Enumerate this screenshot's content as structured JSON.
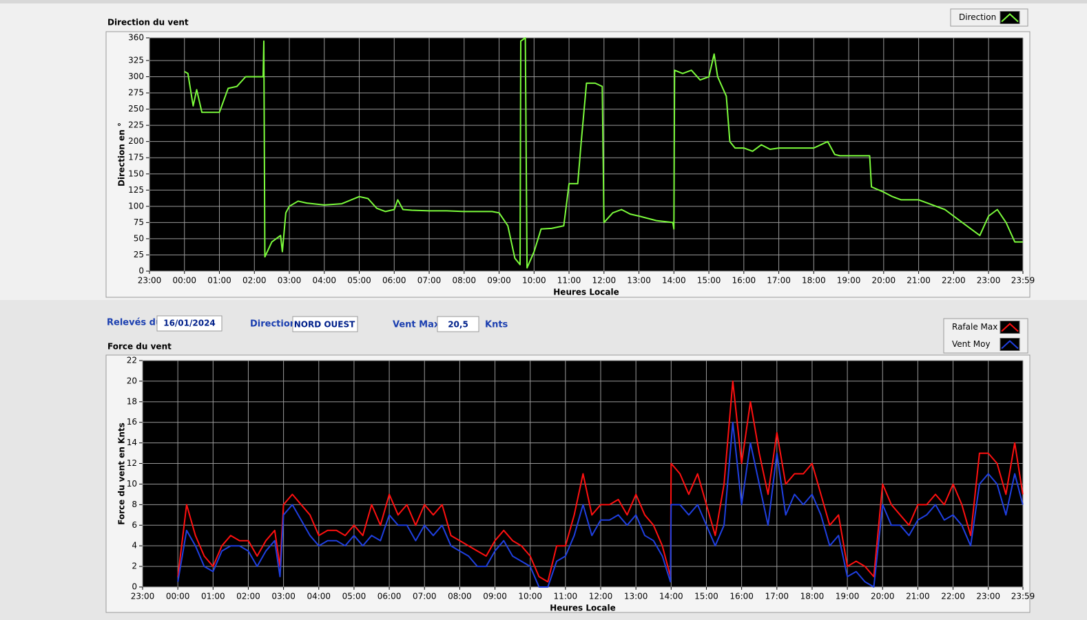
{
  "chart_data": [
    {
      "type": "line",
      "title": "Direction du vent",
      "ylabel": "Direction en °",
      "xlabel": "Heures Locale",
      "x": [
        1,
        1.1,
        1.25,
        1.35,
        1.5,
        1.75,
        2,
        2.25,
        2.5,
        2.75,
        3,
        3.25,
        3.27,
        3.3,
        3.5,
        3.75,
        3.8,
        3.9,
        4,
        4.25,
        4.5,
        5,
        5.5,
        6,
        6.25,
        6.5,
        6.75,
        7,
        7.1,
        7.25,
        7.5,
        8,
        8.5,
        9,
        9.5,
        9.8,
        10,
        10.25,
        10.45,
        10.6,
        10.62,
        10.75,
        10.8,
        11,
        11.2,
        11.5,
        11.85,
        12,
        12.25,
        12.35,
        12.5,
        12.75,
        12.95,
        13,
        13.25,
        13.5,
        13.75,
        14,
        14.5,
        14.97,
        15,
        15.02,
        15.25,
        15.5,
        15.75,
        16,
        16.15,
        16.25,
        16.5,
        16.6,
        16.75,
        17,
        17.25,
        17.5,
        17.75,
        18,
        18.5,
        19,
        19.4,
        19.6,
        19.75,
        20,
        20.3,
        20.6,
        20.65,
        21,
        21.25,
        21.5,
        22,
        22.25,
        22.5,
        22.75,
        23,
        23.25,
        23.5,
        23.75,
        24,
        24.25,
        24.5,
        24.75,
        24.98
      ],
      "series": [
        {
          "name": "Direction",
          "color": "#7cfc3c",
          "values": [
            308,
            305,
            255,
            280,
            245,
            245,
            245,
            282,
            285,
            300,
            300,
            300,
            355,
            22,
            45,
            55,
            30,
            90,
            100,
            108,
            105,
            102,
            104,
            115,
            112,
            97,
            92,
            95,
            110,
            95,
            94,
            93,
            93,
            92,
            92,
            92,
            90,
            70,
            20,
            10,
            355,
            360,
            5,
            30,
            65,
            66,
            70,
            135,
            135,
            200,
            290,
            290,
            285,
            75,
            90,
            95,
            88,
            85,
            78,
            75,
            65,
            310,
            305,
            310,
            295,
            300,
            335,
            300,
            270,
            200,
            190,
            190,
            185,
            195,
            188,
            190,
            190,
            190,
            200,
            180,
            178,
            178,
            178,
            178,
            130,
            122,
            115,
            110,
            110,
            105,
            100,
            95,
            85,
            75,
            65,
            55,
            85,
            95,
            75,
            45,
            45
          ]
        }
      ],
      "xlim": [
        0,
        24.983
      ],
      "xticks": [
        {
          "value": 0,
          "label": "23:00"
        },
        {
          "value": 1,
          "label": "00:00"
        },
        {
          "value": 2,
          "label": "01:00"
        },
        {
          "value": 3,
          "label": "02:00"
        },
        {
          "value": 4,
          "label": "03:00"
        },
        {
          "value": 5,
          "label": "04:00"
        },
        {
          "value": 6,
          "label": "05:00"
        },
        {
          "value": 7,
          "label": "06:00"
        },
        {
          "value": 8,
          "label": "07:00"
        },
        {
          "value": 9,
          "label": "08:00"
        },
        {
          "value": 10,
          "label": "09:00"
        },
        {
          "value": 11,
          "label": "10:00"
        },
        {
          "value": 12,
          "label": "11:00"
        },
        {
          "value": 13,
          "label": "12:00"
        },
        {
          "value": 14,
          "label": "13:00"
        },
        {
          "value": 15,
          "label": "14:00"
        },
        {
          "value": 16,
          "label": "15:00"
        },
        {
          "value": 17,
          "label": "16:00"
        },
        {
          "value": 18,
          "label": "17:00"
        },
        {
          "value": 19,
          "label": "18:00"
        },
        {
          "value": 20,
          "label": "19:00"
        },
        {
          "value": 21,
          "label": "20:00"
        },
        {
          "value": 22,
          "label": "21:00"
        },
        {
          "value": 23,
          "label": "22:00"
        },
        {
          "value": 24,
          "label": "23:00"
        },
        {
          "value": 24.983,
          "label": "23:59"
        }
      ],
      "ylim": [
        0,
        360
      ],
      "yticks": [
        0,
        25,
        50,
        75,
        100,
        125,
        150,
        175,
        200,
        225,
        250,
        275,
        300,
        325,
        360
      ],
      "grid": true,
      "legend": "top-right"
    },
    {
      "type": "line",
      "title": "Force du vent",
      "ylabel": "Force du vent en Knts",
      "xlabel": "Heures Locale",
      "x": [
        1,
        1.25,
        1.5,
        1.75,
        2,
        2.25,
        2.5,
        2.75,
        3,
        3.25,
        3.5,
        3.75,
        3.9,
        4,
        4.25,
        4.5,
        4.75,
        5,
        5.25,
        5.5,
        5.75,
        6,
        6.25,
        6.5,
        6.75,
        7,
        7.25,
        7.5,
        7.75,
        8,
        8.25,
        8.5,
        8.75,
        9,
        9.25,
        9.5,
        9.75,
        10,
        10.25,
        10.5,
        10.75,
        11,
        11.25,
        11.5,
        11.75,
        12,
        12.25,
        12.5,
        12.75,
        13,
        13.25,
        13.5,
        13.75,
        14,
        14.25,
        14.5,
        14.75,
        14.98,
        15,
        15.25,
        15.5,
        15.75,
        16,
        16.25,
        16.5,
        16.75,
        17,
        17.25,
        17.5,
        17.75,
        18,
        18.25,
        18.5,
        18.75,
        19,
        19.25,
        19.5,
        19.75,
        20,
        20.25,
        20.5,
        20.75,
        21,
        21.25,
        21.5,
        21.75,
        22,
        22.25,
        22.5,
        22.75,
        23,
        23.25,
        23.5,
        23.75,
        24,
        24.25,
        24.5,
        24.75,
        24.98
      ],
      "series": [
        {
          "name": "Rafale Max",
          "color": "#ff1010",
          "values": [
            1,
            8,
            5,
            3,
            2,
            4,
            5,
            4.5,
            4.5,
            3,
            4.5,
            5.5,
            2,
            8,
            9,
            8,
            7,
            5,
            5.5,
            5.5,
            5,
            6,
            5,
            8,
            6,
            9,
            7,
            8,
            6,
            8,
            7,
            8,
            5,
            4.5,
            4,
            3.5,
            3,
            4.5,
            5.5,
            4.5,
            4,
            3,
            1,
            0.5,
            4,
            4,
            7,
            11,
            7,
            8,
            8,
            8.5,
            7,
            9,
            7,
            6,
            4,
            1,
            12,
            11,
            9,
            11,
            8,
            5,
            10,
            20,
            12,
            18,
            13,
            9,
            15,
            10,
            11,
            11,
            12,
            9,
            6,
            7,
            2,
            2.5,
            2,
            1,
            10,
            8,
            7,
            6,
            8,
            8,
            9,
            8,
            10,
            8,
            5,
            13,
            13,
            12,
            9,
            14,
            9
          ]
        },
        {
          "name": "Vent Moy",
          "color": "#1f3fe0",
          "values": [
            0.5,
            5.5,
            4,
            2,
            1.5,
            3.5,
            4,
            4,
            3.5,
            2,
            3.5,
            4.5,
            1,
            7,
            8,
            6.5,
            5,
            4,
            4.5,
            4.5,
            4,
            5,
            4,
            5,
            4.5,
            7,
            6,
            6,
            4.5,
            6,
            5,
            6,
            4,
            3.5,
            3,
            2,
            2,
            3.5,
            4.5,
            3,
            2.5,
            2,
            0,
            0,
            2.5,
            3,
            5,
            8,
            5,
            6.5,
            6.5,
            7,
            6,
            7,
            5,
            4.5,
            3,
            0.5,
            8,
            8,
            7,
            8,
            6,
            4,
            6,
            16,
            8,
            14,
            10,
            6,
            13,
            7,
            9,
            8,
            9,
            7,
            4,
            5,
            1,
            1.5,
            0.5,
            0,
            8,
            6,
            6,
            5,
            6.5,
            7,
            8,
            6.5,
            7,
            6,
            4,
            10,
            11,
            10,
            7,
            11,
            8
          ]
        }
      ],
      "xlim": [
        0,
        24.983
      ],
      "xticks": [
        {
          "value": 0,
          "label": "23:00"
        },
        {
          "value": 1,
          "label": "00:00"
        },
        {
          "value": 2,
          "label": "01:00"
        },
        {
          "value": 3,
          "label": "02:00"
        },
        {
          "value": 4,
          "label": "03:00"
        },
        {
          "value": 5,
          "label": "04:00"
        },
        {
          "value": 6,
          "label": "05:00"
        },
        {
          "value": 7,
          "label": "06:00"
        },
        {
          "value": 8,
          "label": "07:00"
        },
        {
          "value": 9,
          "label": "08:00"
        },
        {
          "value": 10,
          "label": "09:00"
        },
        {
          "value": 11,
          "label": "10:00"
        },
        {
          "value": 12,
          "label": "11:00"
        },
        {
          "value": 13,
          "label": "12:00"
        },
        {
          "value": 14,
          "label": "13:00"
        },
        {
          "value": 15,
          "label": "14:00"
        },
        {
          "value": 16,
          "label": "15:00"
        },
        {
          "value": 17,
          "label": "16:00"
        },
        {
          "value": 18,
          "label": "17:00"
        },
        {
          "value": 19,
          "label": "18:00"
        },
        {
          "value": 20,
          "label": "19:00"
        },
        {
          "value": 21,
          "label": "20:00"
        },
        {
          "value": 22,
          "label": "21:00"
        },
        {
          "value": 23,
          "label": "22:00"
        },
        {
          "value": 24,
          "label": "23:00"
        },
        {
          "value": 24.983,
          "label": "23:59"
        }
      ],
      "ylim": [
        0,
        22
      ],
      "yticks": [
        0,
        2,
        4,
        6,
        8,
        10,
        12,
        14,
        16,
        18,
        20,
        22
      ],
      "grid": true,
      "legend": "top-right"
    }
  ],
  "form": {
    "date_label": "Relevés du",
    "date": "16/01/2024",
    "direction_label": "Direction",
    "direction": "NORD OUEST",
    "vent_max_label": "Vent Max",
    "vent_max": "20,5",
    "unit": "Knts"
  }
}
